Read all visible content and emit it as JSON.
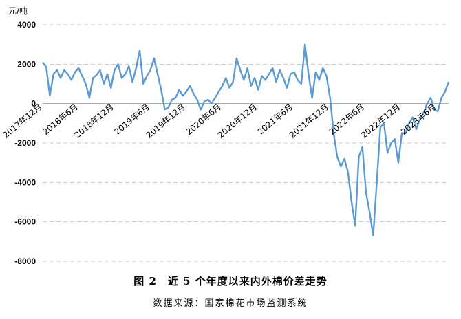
{
  "chart_data": {
    "type": "line",
    "title": "",
    "unit_label": "元/吨",
    "ylim": [
      -8000,
      4000
    ],
    "yticks": [
      4000,
      2000,
      0,
      -2000,
      -4000,
      -6000,
      -8000
    ],
    "yticklabels": [
      "4000",
      "2000",
      "0",
      "-2000",
      "-4000",
      "-6000",
      "-8000"
    ],
    "grid": true,
    "series_color": "#5b9bd5",
    "xticklabels": [
      "2017年12月",
      "2018年6月",
      "2018年12月",
      "2019年6月",
      "2019年12月",
      "2020年6月",
      "2020年12月",
      "2021年6月",
      "2021年12月",
      "2022年6月",
      "2022年12月",
      "2023年6月"
    ],
    "series": [
      {
        "x_start": "2017-12",
        "x_end": "2023-08",
        "values": [
          2100,
          1850,
          400,
          1500,
          1700,
          1300,
          1700,
          1500,
          1200,
          1600,
          1800,
          1400,
          1000,
          300,
          1300,
          1450,
          1700,
          1000,
          1500,
          800,
          1700,
          2000,
          1300,
          1500,
          1900,
          1100,
          1800,
          2700,
          1000,
          1400,
          1700,
          2300,
          1500,
          700,
          -300,
          -200,
          200,
          300,
          700,
          400,
          600,
          900,
          500,
          200,
          -300,
          100,
          200,
          0,
          300,
          600,
          900,
          1300,
          800,
          1100,
          2300,
          1700,
          1200,
          1800,
          900,
          1300,
          700,
          1400,
          1200,
          1500,
          1800,
          1100,
          1700,
          1300,
          800,
          1500,
          1600,
          1200,
          1000,
          3000,
          1500,
          300,
          1600,
          1200,
          1800,
          1400,
          300,
          -1500,
          -2700,
          -3200,
          -2800,
          -3500,
          -5000,
          -6200,
          -2700,
          -2200,
          -4500,
          -5500,
          -6700,
          -4000,
          -1200,
          -1000,
          -2500,
          -2000,
          -1800,
          -3000,
          -1500,
          -1500,
          -1000,
          -700,
          -1300,
          -800,
          -500,
          0,
          300,
          -300,
          -400,
          300,
          600,
          1100
        ]
      }
    ]
  },
  "caption": {
    "title": "图 2　近 5 个年度以来内外棉价差走势",
    "source": "数据来源：国家棉花市场监测系统"
  }
}
